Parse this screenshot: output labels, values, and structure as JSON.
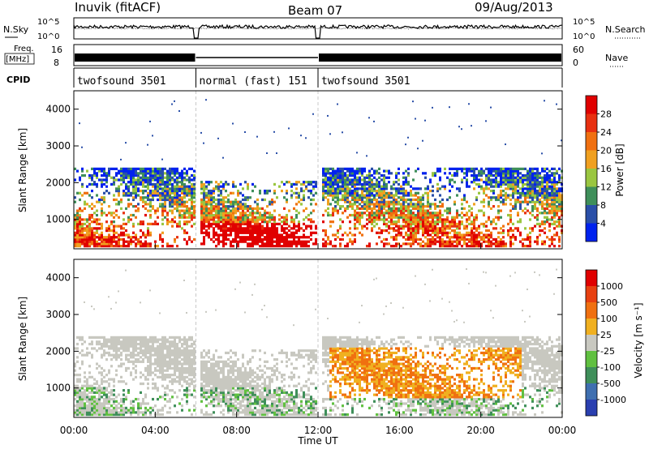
{
  "header": {
    "radar": "Inuvik  (fitACF)",
    "beam": "Beam 07",
    "date": "09/Aug/2013"
  },
  "top_panels": {
    "nsky_label": "N.Sky",
    "nsearch_label": "N.Search",
    "noise_ticks": [
      "10^5",
      "10^0"
    ],
    "freq_label_1": "Freq.",
    "freq_label_2": "[MHz]",
    "freq_ticks": [
      "16",
      "8"
    ],
    "nave_label": "Nave",
    "nave_ticks": [
      "60",
      "0"
    ],
    "cpid_label": "CPID",
    "cpid_segments": [
      {
        "name": "twofsound 3501",
        "start_hour": 0.0,
        "end_hour": 6.0
      },
      {
        "name": "normal (fast) 151",
        "start_hour": 6.0,
        "end_hour": 12.0
      },
      {
        "name": "twofsound 3501",
        "start_hour": 12.0,
        "end_hour": 24.0
      }
    ]
  },
  "chart_data": [
    {
      "type": "heatmap",
      "panel": "power",
      "ylabel": "Slant Range [km]",
      "xlabel": "Time UT",
      "y_ticks": [
        1000,
        2000,
        3000,
        4000
      ],
      "ylim": [
        200,
        4500
      ],
      "colorbar": {
        "label": "Power [dB]",
        "ticks": [
          "4",
          "8",
          "12",
          "16",
          "20",
          "24",
          "28"
        ],
        "colors": [
          "#0022ee",
          "#2a4fa8",
          "#3f8f5a",
          "#9ac640",
          "#f0a020",
          "#f07010",
          "#e83010",
          "#e00000"
        ]
      }
    },
    {
      "type": "heatmap",
      "panel": "velocity",
      "ylabel": "Slant Range [km]",
      "xlabel": "Time UT",
      "y_ticks": [
        1000,
        2000,
        3000,
        4000
      ],
      "ylim": [
        200,
        4500
      ],
      "colorbar": {
        "label": "Velocity [m s⁻¹]",
        "ticks": [
          "1000",
          "500",
          "100",
          "25",
          "-25",
          "-100",
          "-500",
          "-1000"
        ],
        "colors": [
          "#2a3fb0",
          "#3f6fb0",
          "#3f8f5a",
          "#60c040",
          "#c8c8c0",
          "#f0b020",
          "#f07010",
          "#e84010",
          "#e00000"
        ]
      }
    }
  ],
  "x_axis": {
    "label": "Time UT",
    "ticks": [
      "00:00",
      "04:00",
      "08:00",
      "12:00",
      "16:00",
      "20:00",
      "00:00"
    ],
    "range_hours": [
      0,
      24
    ]
  }
}
